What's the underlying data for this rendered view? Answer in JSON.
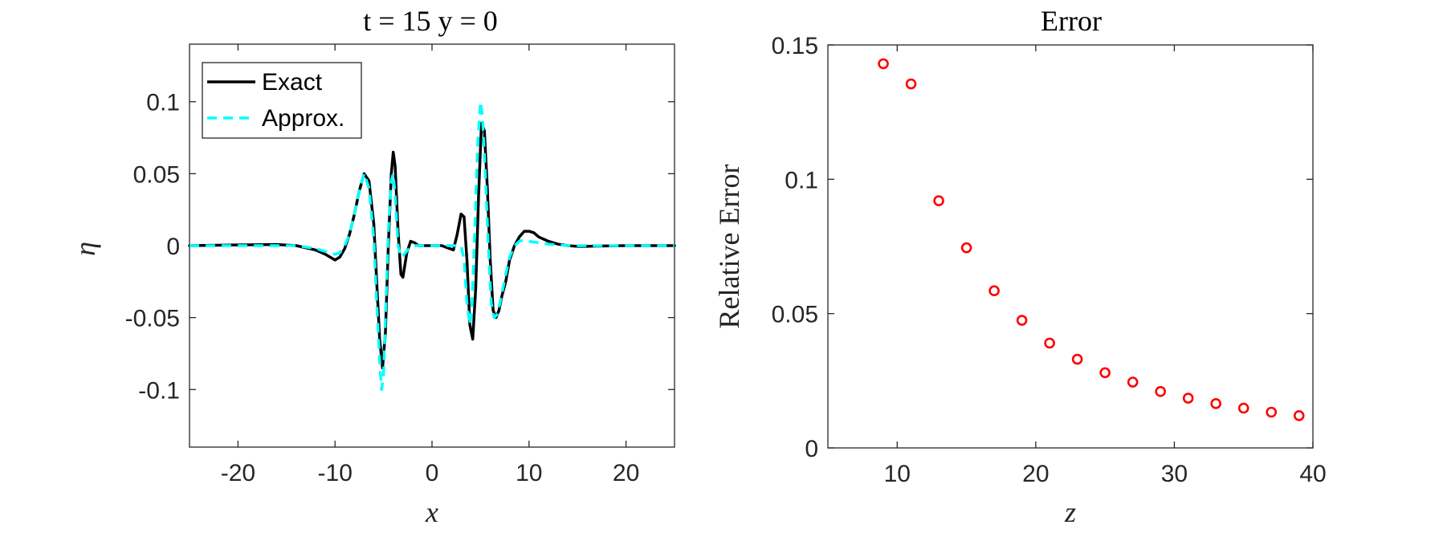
{
  "chart_data": [
    {
      "type": "line",
      "title": "t = 15 y = 0",
      "xlabel": "x",
      "ylabel": "η",
      "xlim": [
        -25,
        25
      ],
      "ylim": [
        -0.14,
        0.14
      ],
      "xticks": [
        -20,
        -10,
        0,
        10,
        20
      ],
      "xtick_labels": [
        "-20",
        "-10",
        "0",
        "10",
        "20"
      ],
      "yticks": [
        -0.1,
        -0.05,
        0,
        0.05,
        0.1
      ],
      "ytick_labels": [
        "-0.1",
        "-0.05",
        "0",
        "0.05",
        "0.1"
      ],
      "grid": false,
      "legend_position": "top-left",
      "series": [
        {
          "name": "Exact",
          "color": "#000000",
          "style": "solid",
          "x": [
            -25,
            -20,
            -16,
            -14,
            -12,
            -11,
            -10,
            -9.5,
            -9,
            -8.5,
            -8,
            -7.5,
            -7,
            -6.5,
            -6,
            -5.7,
            -5.4,
            -5.1,
            -4.8,
            -4.5,
            -4.2,
            -4.0,
            -3.8,
            -3.5,
            -3.2,
            -3.0,
            -2.6,
            -2.2,
            -1.8,
            -1.4,
            -1.0,
            0,
            1.0,
            1.8,
            2.2,
            2.6,
            3.0,
            3.3,
            3.6,
            3.9,
            4.2,
            4.5,
            4.8,
            5.1,
            5.4,
            5.7,
            6.0,
            6.3,
            6.6,
            6.9,
            7.2,
            7.6,
            8.0,
            8.5,
            9.0,
            9.5,
            10,
            10.5,
            11,
            12,
            13,
            14,
            15,
            16,
            17,
            18,
            20,
            25
          ],
          "y": [
            0,
            0.0005,
            0.0008,
            0.0,
            -0.003,
            -0.006,
            -0.01,
            -0.008,
            -0.002,
            0.008,
            0.022,
            0.038,
            0.05,
            0.045,
            0.015,
            -0.025,
            -0.065,
            -0.085,
            -0.06,
            0.0,
            0.05,
            0.065,
            0.055,
            0.01,
            -0.02,
            -0.022,
            -0.005,
            0.003,
            0.002,
            0.0,
            0.0,
            0.0,
            0.0,
            -0.002,
            -0.003,
            0.008,
            0.022,
            0.02,
            -0.01,
            -0.055,
            -0.065,
            -0.03,
            0.035,
            0.085,
            0.08,
            0.04,
            -0.01,
            -0.045,
            -0.05,
            -0.045,
            -0.035,
            -0.025,
            -0.01,
            0.0,
            0.006,
            0.01,
            0.01,
            0.009,
            0.006,
            0.003,
            0.001,
            0.0,
            -0.0005,
            -0.0005,
            -0.0003,
            -0.0002,
            0,
            0
          ]
        },
        {
          "name": "Approx.",
          "color": "#00FFFF",
          "style": "dashed",
          "x": [
            -25,
            -20,
            -16,
            -14,
            -12,
            -11,
            -10,
            -9.5,
            -9,
            -8.5,
            -8,
            -7.5,
            -7,
            -6.5,
            -6,
            -5.7,
            -5.4,
            -5.2,
            -5.0,
            -4.8,
            -4.5,
            -4.2,
            -4.0,
            -3.8,
            -3.5,
            -3.2,
            -3.0,
            -2.5,
            -2.0,
            -1.0,
            0,
            1.0,
            2.0,
            2.5,
            3.0,
            3.3,
            3.6,
            3.9,
            4.1,
            4.4,
            4.7,
            5.0,
            5.2,
            5.5,
            5.8,
            6.1,
            6.4,
            6.7,
            7.0,
            7.3,
            7.6,
            8.0,
            8.5,
            9.0,
            9.5,
            10,
            11,
            12,
            14,
            16,
            18,
            20,
            25
          ],
          "y": [
            0,
            0,
            0,
            0,
            -0.002,
            -0.004,
            -0.006,
            -0.005,
            0.0,
            0.008,
            0.022,
            0.038,
            0.05,
            0.04,
            0.005,
            -0.04,
            -0.08,
            -0.1,
            -0.09,
            -0.05,
            0.01,
            0.045,
            0.05,
            0.035,
            0.0,
            -0.008,
            -0.007,
            -0.003,
            0.0,
            0.0,
            0.0,
            0.0,
            0.0,
            0.0,
            0.0,
            -0.01,
            -0.04,
            -0.055,
            -0.045,
            0.01,
            0.07,
            0.1,
            0.09,
            0.05,
            0.0,
            -0.04,
            -0.05,
            -0.048,
            -0.04,
            -0.03,
            -0.02,
            -0.008,
            0.0,
            0.003,
            0.004,
            0.003,
            0.002,
            0.001,
            0.0,
            0.0,
            0.0,
            0.0,
            0
          ]
        }
      ]
    },
    {
      "type": "scatter",
      "title": "Error",
      "xlabel": "z",
      "ylabel": "Relative Error",
      "xlim": [
        5,
        40
      ],
      "ylim": [
        0,
        0.15
      ],
      "xticks": [
        10,
        20,
        30,
        40
      ],
      "xtick_labels": [
        "10",
        "20",
        "30",
        "40"
      ],
      "yticks": [
        0,
        0.05,
        0.1,
        0.15
      ],
      "ytick_labels": [
        "0",
        "0.05",
        "0.1",
        "0.15"
      ],
      "grid": false,
      "series": [
        {
          "color": "#FF0000",
          "marker": "circle-open",
          "x": [
            9,
            11,
            13,
            15,
            17,
            19,
            21,
            23,
            25,
            27,
            29,
            31,
            33,
            35,
            37,
            39
          ],
          "y": [
            0.143,
            0.1355,
            0.092,
            0.0745,
            0.0585,
            0.0475,
            0.039,
            0.033,
            0.028,
            0.0245,
            0.021,
            0.0185,
            0.0165,
            0.0148,
            0.0133,
            0.012
          ]
        }
      ]
    }
  ]
}
